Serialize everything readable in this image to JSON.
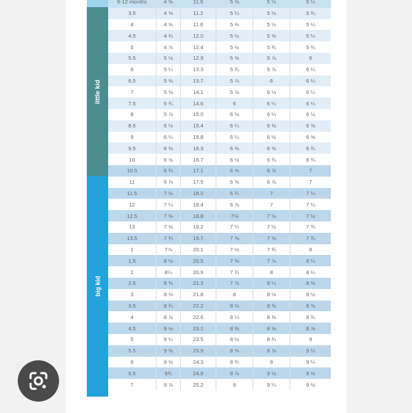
{
  "table": {
    "rows": [
      {
        "size": "9-12 months",
        "c1": "4 ⅝",
        "c2": "11.6",
        "c3": "5 ⅝",
        "c4": "5 ⅓",
        "c5": "5 ¼",
        "group": "top"
      },
      {
        "size": "3.5",
        "c1": "4 ⅝",
        "c2": "11.2",
        "c3": "5 ¼",
        "c4": "5 ⅓",
        "c5": "5 ¾",
        "group": "little"
      },
      {
        "size": "4",
        "c1": "4 ⅝",
        "c2": "11.6",
        "c3": "5 ⅜",
        "c4": "5 ⅓",
        "c5": "5 ¼",
        "group": "little"
      },
      {
        "size": "4.5",
        "c1": "4 ¾",
        "c2": "12.0",
        "c3": "5 ½",
        "c4": "5 ⅝",
        "c5": "5 ¼",
        "group": "little"
      },
      {
        "size": "5",
        "c1": "4 ⅞",
        "c2": "12.4",
        "c3": "5 ½",
        "c4": "5 ¾",
        "c5": "5 ¾",
        "group": "little"
      },
      {
        "size": "5.5",
        "c1": "5 ⅛",
        "c2": "12.9",
        "c3": "5 ⅝",
        "c4": "5 ⅞",
        "c5": "6",
        "group": "little"
      },
      {
        "size": "6",
        "c1": "5 ¼",
        "c2": "13.3",
        "c3": "5 ¾",
        "c4": "5 ⅞",
        "c5": "6 ¼",
        "group": "little"
      },
      {
        "size": "6.5",
        "c1": "5 ⅜",
        "c2": "13.7",
        "c3": "5 ⅞",
        "c4": "6",
        "c5": "6 ¼",
        "group": "little"
      },
      {
        "size": "7",
        "c1": "5 ⅝",
        "c2": "14.1",
        "c3": "5 ⅞",
        "c4": "6 ⅛",
        "c5": "6 ¼",
        "group": "little"
      },
      {
        "size": "7.5",
        "c1": "5 ¾",
        "c2": "14.6",
        "c3": "6",
        "c4": "6 ¼",
        "c5": "6 ¼",
        "group": "little"
      },
      {
        "size": "8",
        "c1": "5 ⅞",
        "c2": "15.0",
        "c3": "6 ⅛",
        "c4": "6 ¼",
        "c5": "6 ½",
        "group": "little"
      },
      {
        "size": "8.5",
        "c1": "6 ⅛",
        "c2": "15.4",
        "c3": "6 ¼",
        "c4": "6 ⅜",
        "c5": "6 ⅝",
        "group": "little"
      },
      {
        "size": "9",
        "c1": "6 ¼",
        "c2": "15.8",
        "c3": "6 ¼",
        "c4": "6 ½",
        "c5": "6 ⅝",
        "group": "little"
      },
      {
        "size": "9.5",
        "c1": "6 ⅜",
        "c2": "16.3",
        "c3": "6 ⅜",
        "c4": "6 ⅝",
        "c5": "6 ¾",
        "group": "little"
      },
      {
        "size": "10",
        "c1": "6 ⅝",
        "c2": "16.7",
        "c3": "6 ½",
        "c4": "6 ¾",
        "c5": "6 ¾",
        "group": "little"
      },
      {
        "size": "10.5",
        "c1": "6 ¾",
        "c2": "17.1",
        "c3": "6 ⅝",
        "c4": "6 ⅞",
        "c5": "7",
        "group": "big"
      },
      {
        "size": "11",
        "c1": "6 ⅞",
        "c2": "17.5",
        "c3": "6 ⅝",
        "c4": "6 ⅞",
        "c5": "7",
        "group": "big"
      },
      {
        "size": "11.5",
        "c1": "7 ⅛",
        "c2": "18.0",
        "c3": "6 ¾",
        "c4": "7",
        "c5": "7 ¼",
        "group": "big"
      },
      {
        "size": "12",
        "c1": "7 ¼",
        "c2": "18.4",
        "c3": "6 ⅞",
        "c4": "7",
        "c5": "7 ¼",
        "group": "big"
      },
      {
        "size": "12.5",
        "c1": "7 ⅜",
        "c2": "18.8",
        "c3": "7⅛",
        "c4": "7 ⅛",
        "c5": "7 ½",
        "group": "big"
      },
      {
        "size": "13",
        "c1": "7 ⅝",
        "c2": "19.2",
        "c3": "7 ¼",
        "c4": "7 ½",
        "c5": "7 ¾",
        "group": "big"
      },
      {
        "size": "13.5",
        "c1": "7 ¾",
        "c2": "19.7",
        "c3": "7 ⅝",
        "c4": "7 ⅝",
        "c5": "7 ¾",
        "group": "big"
      },
      {
        "size": "1",
        "c1": "7⅞",
        "c2": "20.1",
        "c3": "7 ½",
        "c4": "7 ¾",
        "c5": "8",
        "group": "big"
      },
      {
        "size": "1.5",
        "c1": "8 ⅛",
        "c2": "20.5",
        "c3": "7 ⅝",
        "c4": "7 ⅞",
        "c5": "8 ¼",
        "group": "big"
      },
      {
        "size": "2",
        "c1": "8¼",
        "c2": "20.9",
        "c3": "7 ¾",
        "c4": "8",
        "c5": "8 ¼",
        "group": "big"
      },
      {
        "size": "2.5",
        "c1": "8 ⅜",
        "c2": "21.3",
        "c3": "7 ⅞",
        "c4": "8 ¼",
        "c5": "8 ⅜",
        "group": "big"
      },
      {
        "size": "3",
        "c1": "8 ⅝",
        "c2": "21.8",
        "c3": "8",
        "c4": "8 ⅛",
        "c5": "8 ½",
        "group": "big"
      },
      {
        "size": "3.5",
        "c1": "8 ¾",
        "c2": "22.2",
        "c3": "8 ⅛",
        "c4": "8 ⅜",
        "c5": "8 ⅝",
        "group": "big"
      },
      {
        "size": "4",
        "c1": "8 ⅞",
        "c2": "22.6",
        "c3": "8 ¼",
        "c4": "8 ⅜",
        "c5": "8 ¾",
        "group": "big"
      },
      {
        "size": "4.5",
        "c1": "9 ⅛",
        "c2": "23.1",
        "c3": "8 ⅜",
        "c4": "8 ⅝",
        "c5": "8 ⅞",
        "group": "big"
      },
      {
        "size": "5",
        "c1": "9 ¼",
        "c2": "23.5",
        "c3": "8 ½",
        "c4": "8 ¾",
        "c5": "9",
        "group": "big"
      },
      {
        "size": "5.5",
        "c1": "9 ⅜",
        "c2": "23.9",
        "c3": "8 ⅝",
        "c4": "8 ⅞",
        "c5": "9 ¼",
        "group": "big"
      },
      {
        "size": "6",
        "c1": "9 ⅝",
        "c2": "24.3",
        "c3": "8 ¾",
        "c4": "9",
        "c5": "9 ¼",
        "group": "big"
      },
      {
        "size": "6.5",
        "c1": "9¾",
        "c2": "24.8",
        "c3": "8 ⅞",
        "c4": "9 ⅛",
        "c5": "9 ⅜",
        "group": "big"
      },
      {
        "size": "7",
        "c1": "9 ⅞",
        "c2": "25.2",
        "c3": "9",
        "c4": "9 ¼",
        "c5": "9 ½",
        "group": "big"
      }
    ]
  },
  "bands": {
    "little": "little kid",
    "big": "big kid"
  },
  "colors": {
    "little_band": "#4c8d90",
    "big_band": "#23a2dc",
    "stripe": "#e1eef7",
    "big_stripe": "#bcd7ec"
  },
  "lens": {
    "icon": "google-lens-icon"
  }
}
